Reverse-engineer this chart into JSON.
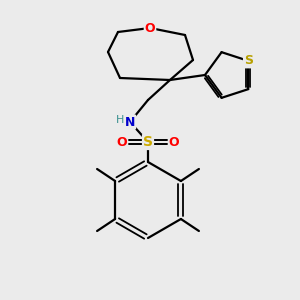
{
  "background_color": "#ebebeb",
  "atom_colors": {
    "O": "#ff0000",
    "N": "#0000cc",
    "S_sulfonamide": "#ccaa00",
    "S_thiophene": "#b8a000",
    "C": "#000000",
    "H": "#3a9090"
  },
  "bond_color": "#000000",
  "figsize": [
    3.0,
    3.0
  ],
  "dpi": 100
}
